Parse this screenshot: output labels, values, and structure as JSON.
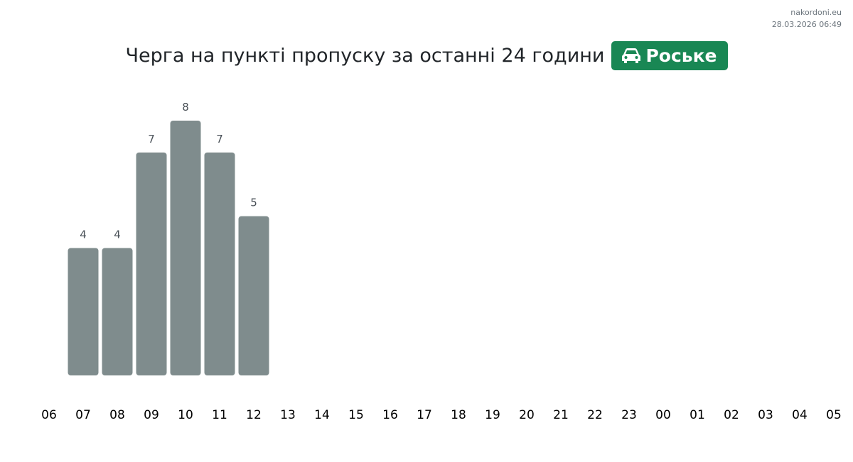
{
  "chart_data": {
    "type": "bar",
    "title": "Черга на пункті пропуску за останні 24 години",
    "badge": "Роське",
    "source": "nakordoni.eu",
    "timestamp": "28.03.2026 06:49",
    "categories": [
      "06",
      "07",
      "08",
      "09",
      "10",
      "11",
      "12",
      "13",
      "14",
      "15",
      "16",
      "17",
      "18",
      "19",
      "20",
      "21",
      "22",
      "23",
      "00",
      "01",
      "02",
      "03",
      "04",
      "05"
    ],
    "values": [
      null,
      4,
      4,
      7,
      8,
      7,
      5,
      null,
      null,
      null,
      null,
      null,
      null,
      null,
      null,
      null,
      null,
      null,
      null,
      null,
      null,
      null,
      null,
      null
    ],
    "color": "#7f8c8d",
    "badge_color": "#198754"
  }
}
